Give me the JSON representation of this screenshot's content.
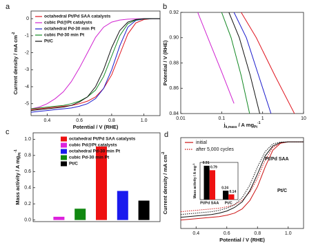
{
  "chart_data": [
    {
      "type": "line",
      "panel": "a",
      "x_label": [
        {
          "text": "Potential / V (RHE)"
        }
      ],
      "y_label": [
        {
          "text": "Current density / mA cm"
        },
        {
          "text": "-2",
          "sup": true
        }
      ],
      "xlim": [
        0.3,
        1.1
      ],
      "xticks": [
        0.4,
        0.6,
        0.8,
        {
          "value": 1.0,
          "label": "1.0"
        }
      ],
      "ylim": [
        -5.7,
        0.45
      ],
      "yticks": [
        0,
        -1,
        -2,
        -3,
        -4,
        -5
      ],
      "x": [
        0.3,
        0.35,
        0.4,
        0.45,
        0.5,
        0.55,
        0.6,
        0.65,
        0.7,
        0.75,
        0.8,
        0.85,
        0.9,
        0.95,
        1.0,
        1.05,
        1.1
      ],
      "series": [
        {
          "name": "octahedral Pt/Pd SAA catalysts",
          "color": "#e0141e",
          "values": [
            -5.35,
            -5.3,
            -5.25,
            -5.2,
            -5.15,
            -5.1,
            -5.0,
            -4.85,
            -4.6,
            -4.1,
            -3.3,
            -2.1,
            -0.9,
            -0.25,
            -0.05,
            0,
            0
          ]
        },
        {
          "name": "cubic Pd@Pt catalysts",
          "color": "#d020d0",
          "values": [
            -5.3,
            -5.2,
            -5.0,
            -4.7,
            -4.3,
            -3.7,
            -2.9,
            -2.0,
            -1.1,
            -0.5,
            -0.2,
            -0.08,
            -0.03,
            -0.01,
            0,
            0,
            0
          ]
        },
        {
          "name": "octahedral Pd-30 min Pt",
          "color": "#1a1acc",
          "values": [
            -5.5,
            -5.45,
            -5.4,
            -5.35,
            -5.3,
            -5.25,
            -5.15,
            -5.0,
            -4.7,
            -4.1,
            -3.0,
            -1.6,
            -0.5,
            -0.1,
            -0.02,
            0,
            0
          ]
        },
        {
          "name": "cubic Pd-30 min Pt",
          "color": "#118822",
          "values": [
            -5.3,
            -5.25,
            -5.2,
            -5.15,
            -5.1,
            -5.0,
            -4.85,
            -4.6,
            -4.2,
            -3.4,
            -2.2,
            -1.0,
            -0.3,
            -0.08,
            -0.01,
            0,
            0
          ]
        },
        {
          "name": "Pt/C",
          "color": "#111111",
          "values": [
            -5.4,
            -5.35,
            -5.3,
            -5.25,
            -5.2,
            -5.1,
            -4.9,
            -4.6,
            -4.0,
            -3.0,
            -1.7,
            -0.7,
            -0.2,
            -0.05,
            0,
            0,
            0
          ]
        }
      ]
    },
    {
      "type": "line",
      "panel": "b",
      "log_x": true,
      "x_label": [
        {
          "text": "j"
        },
        {
          "text": "k,mass",
          "sub": true
        },
        {
          "text": " / A mg"
        },
        {
          "text": "Pt",
          "sub": true
        },
        {
          "text": "-1",
          "sup": true
        }
      ],
      "y_label": [
        {
          "text": "Potential / V (RHE)"
        }
      ],
      "xlim": [
        0.01,
        10
      ],
      "xticks": [
        0.01,
        0.1,
        1,
        10
      ],
      "ylim": [
        0.84,
        0.92
      ],
      "yticks": [
        0.84,
        0.86,
        0.88,
        {
          "value": 0.9,
          "label": "0.90"
        },
        0.92
      ],
      "series": [
        {
          "color": "#d020d0",
          "x": [
            0.026,
            0.05,
            0.1,
            0.2
          ],
          "values": [
            0.92,
            0.897,
            0.873,
            0.848
          ]
        },
        {
          "color": "#118822",
          "x": [
            0.1,
            0.17,
            0.3,
            0.48
          ],
          "values": [
            0.92,
            0.9,
            0.87,
            0.84
          ]
        },
        {
          "color": "#111111",
          "x": [
            0.15,
            0.27,
            0.5,
            0.85
          ],
          "values": [
            0.92,
            0.9,
            0.87,
            0.84
          ]
        },
        {
          "color": "#1a1acc",
          "x": [
            0.2,
            0.4,
            0.8,
            1.6
          ],
          "values": [
            0.92,
            0.9,
            0.87,
            0.84
          ]
        },
        {
          "color": "#e0141e",
          "x": [
            0.3,
            0.7,
            2,
            6
          ],
          "values": [
            0.92,
            0.9,
            0.87,
            0.84
          ]
        }
      ]
    },
    {
      "type": "bar",
      "panel": "c",
      "y_label": [
        {
          "text": "Mass activity / A mg"
        },
        {
          "text": "Pt",
          "sub": true
        },
        {
          "text": "-1",
          "sup": true
        }
      ],
      "categories": [
        "octahedral Pt/Pd SAA catalysts",
        "cubic Pd@Pt catalysts",
        "octahedral Pd-30 min Pt",
        "cubic Pd-30 min Pt",
        "Pt/C"
      ],
      "colors": [
        "#ee1111",
        "#dd22dd",
        "#1a1aee",
        "#118811",
        "#000000"
      ],
      "order": [
        1,
        3,
        0,
        2,
        4
      ],
      "values": [
        0.91,
        0.04,
        0.36,
        0.14,
        0.24
      ],
      "ylim": [
        -0.02,
        1.08
      ],
      "yticks": [
        {
          "value": 0,
          "label": "0.0"
        },
        0.2,
        0.4,
        0.6,
        0.8,
        {
          "value": 1.0,
          "label": "1.0"
        }
      ]
    },
    {
      "type": "line",
      "panel": "d",
      "x_label": [
        {
          "text": "Potential / V (RHE)"
        }
      ],
      "y_label": [
        {
          "text": "Current density / mA cm"
        },
        {
          "text": "-2",
          "sup": true
        }
      ],
      "xlim": [
        0.3,
        1.1
      ],
      "xticks": [
        0.4,
        0.6,
        0.8,
        {
          "value": 1.0,
          "label": "1.0"
        }
      ],
      "ylim": [
        -6.2,
        0.3
      ],
      "legend": [
        {
          "name": "initial",
          "dash": false
        },
        {
          "name": "after 5,000 cycles",
          "dash": true
        }
      ],
      "annotations": [
        {
          "text": "Pt/Pd SAA",
          "color": "#cc1111"
        },
        {
          "text": "Pt/C",
          "color": "#111111"
        }
      ],
      "x": [
        0.3,
        0.35,
        0.4,
        0.45,
        0.5,
        0.55,
        0.6,
        0.65,
        0.7,
        0.75,
        0.8,
        0.85,
        0.9,
        0.95,
        1.0,
        1.05,
        1.1
      ],
      "series": [
        {
          "color": "#cc1111",
          "dash": false,
          "values": [
            -5.6,
            -5.55,
            -5.5,
            -5.45,
            -5.4,
            -5.35,
            -5.25,
            -5.1,
            -4.8,
            -4.2,
            -3.2,
            -1.8,
            -0.6,
            -0.1,
            0,
            0,
            0
          ]
        },
        {
          "color": "#cc1111",
          "dash": true,
          "values": [
            -5.0,
            -4.95,
            -4.9,
            -4.85,
            -4.8,
            -4.75,
            -4.65,
            -4.5,
            -4.2,
            -3.6,
            -2.6,
            -1.3,
            -0.4,
            -0.08,
            0,
            0,
            0
          ]
        },
        {
          "color": "#111111",
          "dash": false,
          "values": [
            -5.4,
            -5.35,
            -5.3,
            -5.25,
            -5.2,
            -5.1,
            -4.95,
            -4.7,
            -4.3,
            -3.5,
            -2.3,
            -1.0,
            -0.3,
            -0.05,
            0,
            0,
            0
          ]
        },
        {
          "color": "#111111",
          "dash": true,
          "values": [
            -5.2,
            -5.15,
            -5.1,
            -5.05,
            -5.0,
            -4.9,
            -4.75,
            -4.5,
            -4.0,
            -3.1,
            -1.8,
            -0.7,
            -0.15,
            -0.02,
            0,
            0,
            0
          ]
        }
      ],
      "inset": {
        "type": "bar",
        "y_label": [
          {
            "text": "Mass activity / A mg"
          },
          {
            "text": "-1",
            "sup": true
          }
        ],
        "categories": [
          "Pt/Pd SAA",
          "Pt/C"
        ],
        "ylim": [
          0,
          1.0
        ],
        "series": [
          {
            "color": "#000000",
            "values": [
              0.91,
              0.24
            ]
          },
          {
            "color": "#ee1111",
            "values": [
              0.79,
              0.14
            ]
          }
        ]
      }
    }
  ]
}
